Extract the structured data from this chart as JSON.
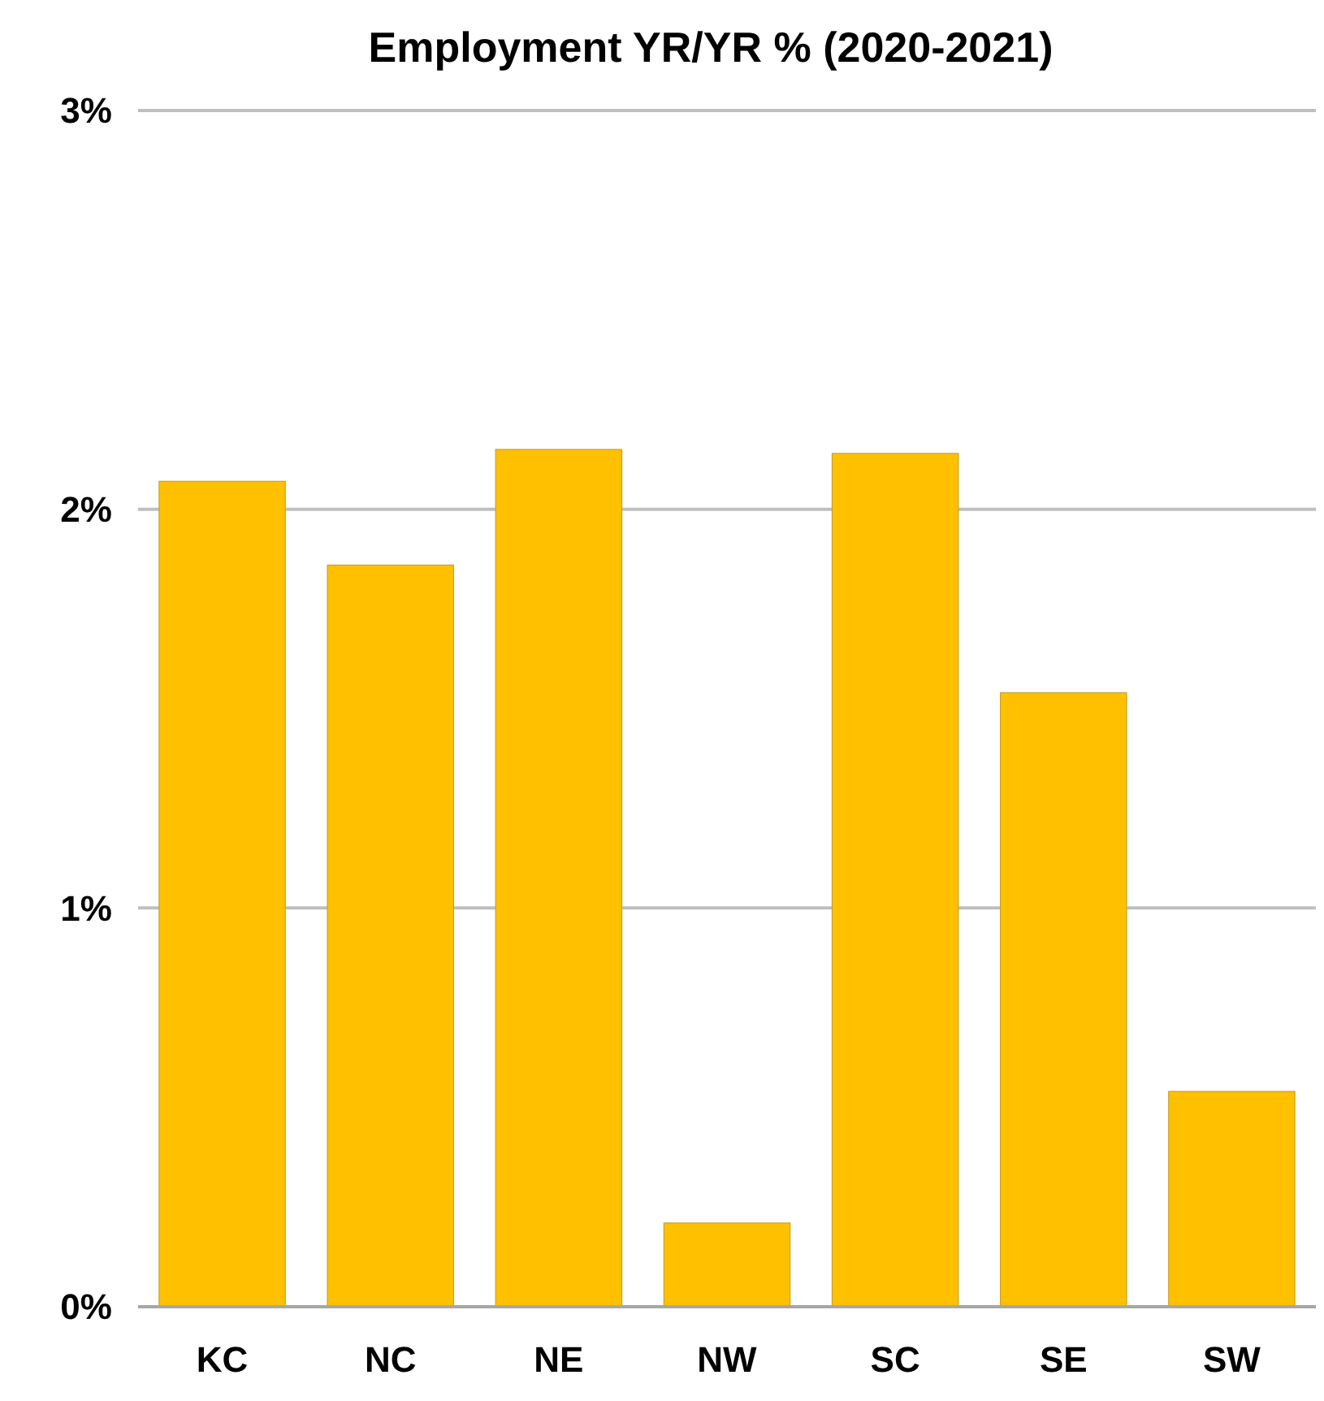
{
  "chart_data": {
    "type": "bar",
    "title": "Employment YR/YR % (2020-2021)",
    "categories": [
      "KC",
      "NC",
      "NE",
      "NW",
      "SC",
      "SE",
      "SW"
    ],
    "values": [
      2.07,
      1.86,
      2.15,
      0.21,
      2.14,
      1.54,
      0.54
    ],
    "color": "#ffc000",
    "ylim": [
      0,
      3
    ],
    "yticks": [
      {
        "value": 0,
        "label": "0%"
      },
      {
        "value": 1,
        "label": "1%"
      },
      {
        "value": 2,
        "label": "2%"
      },
      {
        "value": 3,
        "label": "3%"
      }
    ],
    "grid": "y"
  }
}
